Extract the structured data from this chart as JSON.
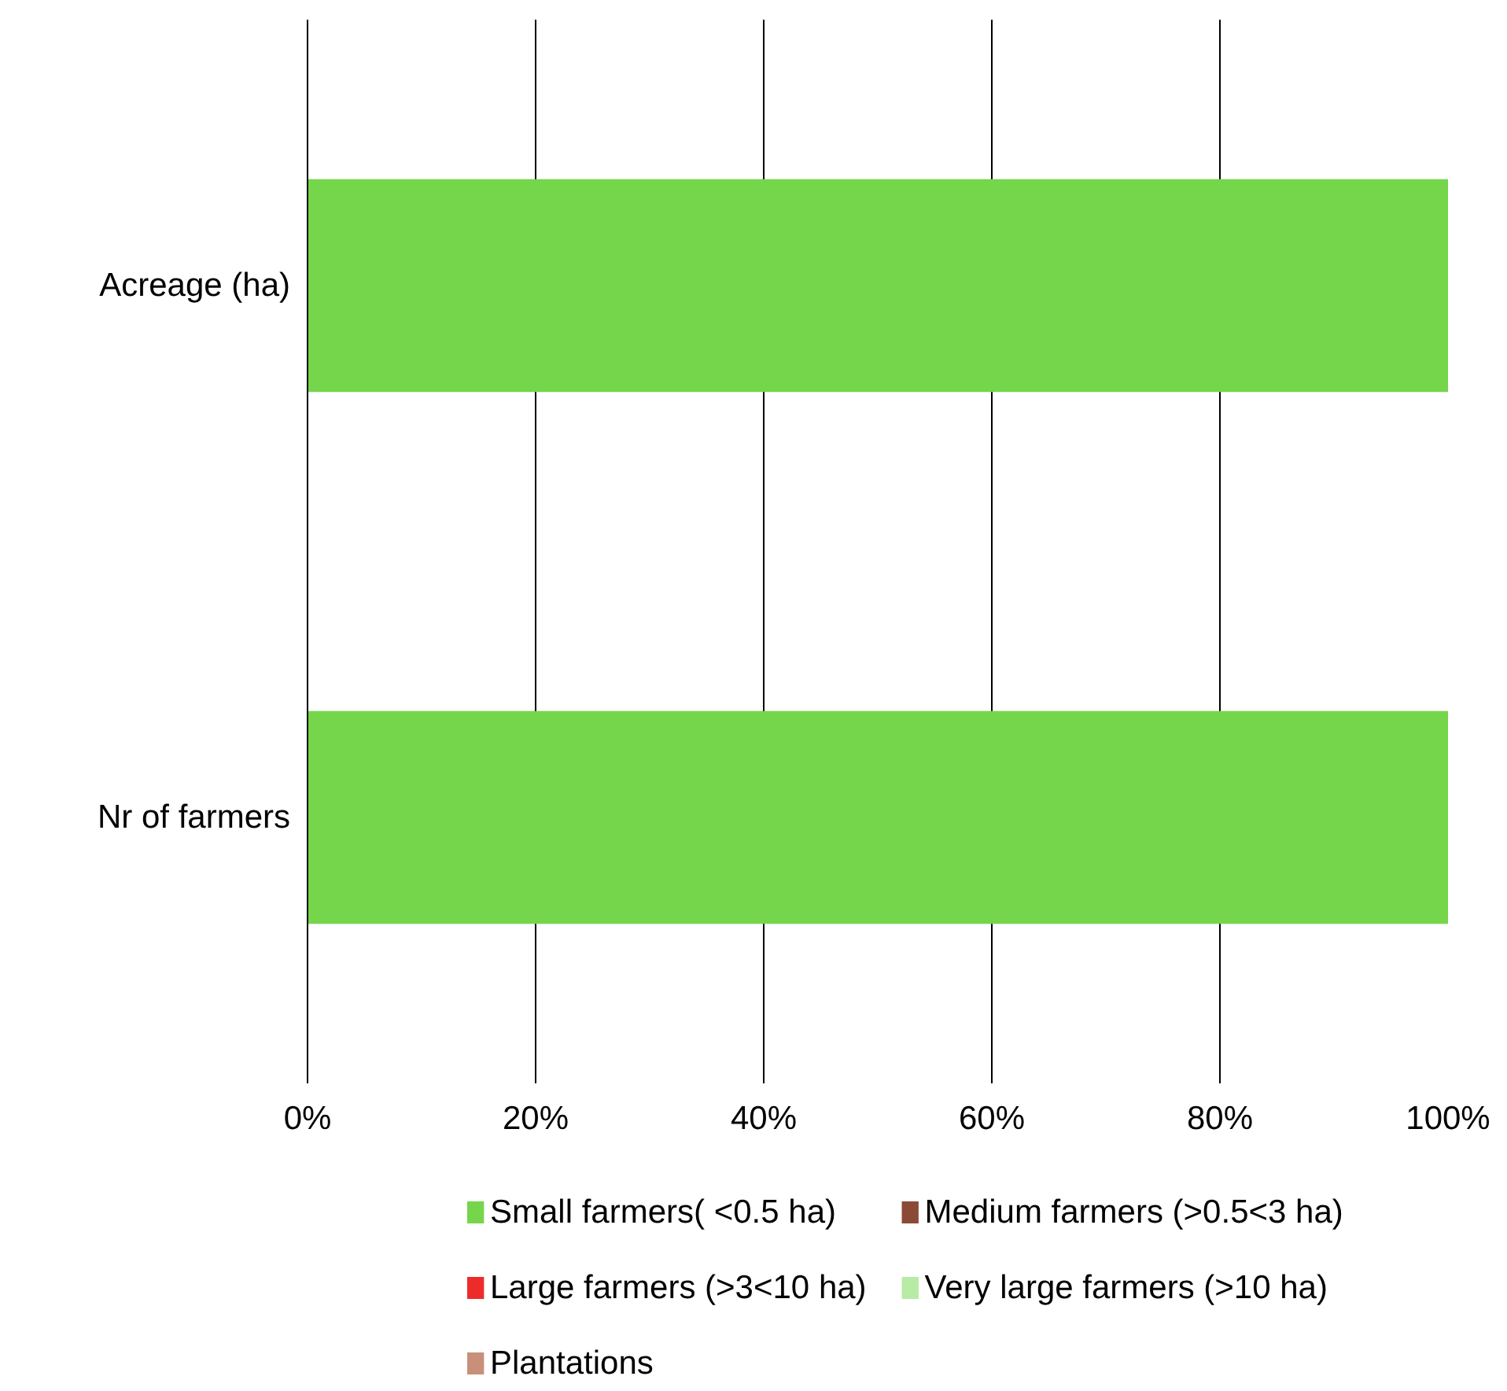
{
  "chart_data": {
    "type": "bar",
    "orientation": "horizontal",
    "stacked": true,
    "categories": [
      "Acreage (ha)",
      "Nr of farmers"
    ],
    "series": [
      {
        "name": "Small farmers( <0.5 ha)",
        "color": "#75d54b",
        "values": [
          100,
          100
        ]
      },
      {
        "name": "Medium farmers (>0.5<3 ha)",
        "color": "#8b4a36",
        "values": [
          0,
          0
        ]
      },
      {
        "name": "Large farmers (>3<10 ha)",
        "color": "#ee2b2b",
        "values": [
          0,
          0
        ]
      },
      {
        "name": "Very large farmers (>10 ha)",
        "color": "#b8eba6",
        "values": [
          0,
          0
        ]
      },
      {
        "name": "Plantations",
        "color": "#c8907a",
        "values": [
          0,
          0
        ]
      }
    ],
    "xlim": [
      0,
      100
    ],
    "xticks": [
      {
        "value": 0,
        "label": "0%"
      },
      {
        "value": 20,
        "label": "20%"
      },
      {
        "value": 40,
        "label": "40%"
      },
      {
        "value": 60,
        "label": "60%"
      },
      {
        "value": 80,
        "label": "80%"
      },
      {
        "value": 100,
        "label": "100%"
      }
    ],
    "grid": "x",
    "legend": "bottom"
  }
}
